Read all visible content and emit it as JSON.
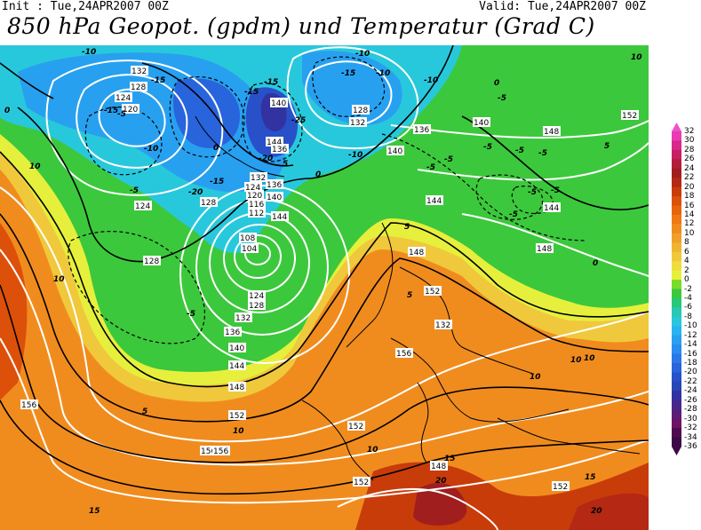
{
  "header": {
    "init": "Init : Tue,24APR2007 00Z",
    "valid": "Valid: Tue,24APR2007 00Z",
    "title": "850 hPa Geopot. (gpdm) und Temperatur (Grad C)"
  },
  "colorbar": {
    "ticks": [
      "32",
      "30",
      "28",
      "26",
      "24",
      "22",
      "20",
      "18",
      "16",
      "14",
      "12",
      "10",
      "8",
      "6",
      "4",
      "2",
      "0",
      "-2",
      "-4",
      "-6",
      "-8",
      "-10",
      "-12",
      "-14",
      "-16",
      "-18",
      "-20",
      "-22",
      "-24",
      "-26",
      "-28",
      "-30",
      "-32",
      "-34",
      "-36"
    ],
    "colors": [
      "#f050c8",
      "#e83cb4",
      "#d8288c",
      "#c81e64",
      "#b41e3c",
      "#a01e1e",
      "#b42814",
      "#c83c0a",
      "#dc500a",
      "#e8640a",
      "#f07814",
      "#f08c1e",
      "#f0a028",
      "#f0b432",
      "#f0c83c",
      "#f0dc3c",
      "#e6f03c",
      "#78dc28",
      "#3cc83c",
      "#28c878",
      "#28c8b4",
      "#28c8dc",
      "#28b4f0",
      "#28a0f0",
      "#288cf0",
      "#2878e6",
      "#2864dc",
      "#2850c8",
      "#2846b4",
      "#3232a0",
      "#46288c",
      "#5a1e78",
      "#6e1464",
      "#500a50",
      "#3c0a46"
    ]
  },
  "map_labels": {
    "geopotential": [
      "132",
      "128",
      "124",
      "120",
      "140",
      "144",
      "128",
      "132",
      "136",
      "140",
      "148",
      "152",
      "124",
      "128",
      "132",
      "124",
      "120",
      "116",
      "112",
      "108",
      "104",
      "136",
      "140",
      "144",
      "148",
      "128",
      "132",
      "136",
      "140",
      "144",
      "148",
      "152",
      "156",
      "124",
      "128",
      "132",
      "144",
      "148",
      "152",
      "156",
      "156",
      "152",
      "148",
      "152",
      "156",
      "152",
      "136",
      "140",
      "144"
    ],
    "temperature": [
      "-10",
      "-15",
      "-15",
      "-5",
      "-10",
      "-5",
      "-15",
      "-15",
      "-20",
      "-25",
      "-15",
      "-20",
      "-10",
      "-5",
      "-15",
      "-10",
      "-10",
      "-5",
      "-5",
      "-5",
      "-5",
      "0",
      "0",
      "0",
      "5",
      "5",
      "5",
      "10",
      "10",
      "10",
      "15",
      "15",
      "20",
      "20",
      "-5",
      "0",
      "5",
      "10",
      "10",
      "15",
      "-5",
      "0",
      "5",
      "10",
      "-10",
      "-5",
      "-5",
      "-5",
      "10",
      "10"
    ]
  }
}
